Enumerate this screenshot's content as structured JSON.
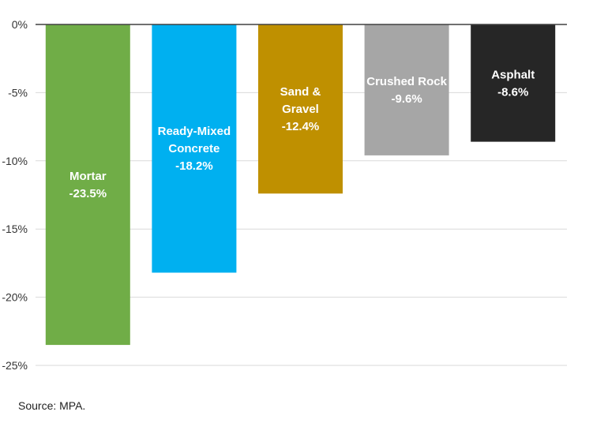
{
  "chart_data": {
    "type": "bar",
    "categories": [
      "Mortar",
      "Ready-Mixed Concrete",
      "Sand & Gravel",
      "Crushed Rock",
      "Asphalt"
    ],
    "label_lines": [
      [
        "Mortar"
      ],
      [
        "Ready-Mixed",
        "Concrete"
      ],
      [
        "Sand &",
        "Gravel"
      ],
      [
        "Crushed Rock"
      ],
      [
        "Asphalt"
      ]
    ],
    "values": [
      -23.5,
      -18.2,
      -12.4,
      -9.6,
      -8.6
    ],
    "value_labels": [
      "-23.5%",
      "-18.2%",
      "-12.4%",
      "-9.6%",
      "-8.6%"
    ],
    "colors": [
      "#70AD47",
      "#00B0F0",
      "#BF9000",
      "#A6A6A6",
      "#262626"
    ],
    "ylim": [
      -25,
      0
    ],
    "yticks": [
      0,
      -5,
      -10,
      -15,
      -20,
      -25
    ],
    "ytick_labels": [
      "0%",
      "-5%",
      "-10%",
      "-15%",
      "-20%",
      "-25%"
    ],
    "grid": true,
    "title": "",
    "xlabel": "",
    "ylabel": ""
  },
  "footer": {
    "source": "Source: MPA."
  }
}
